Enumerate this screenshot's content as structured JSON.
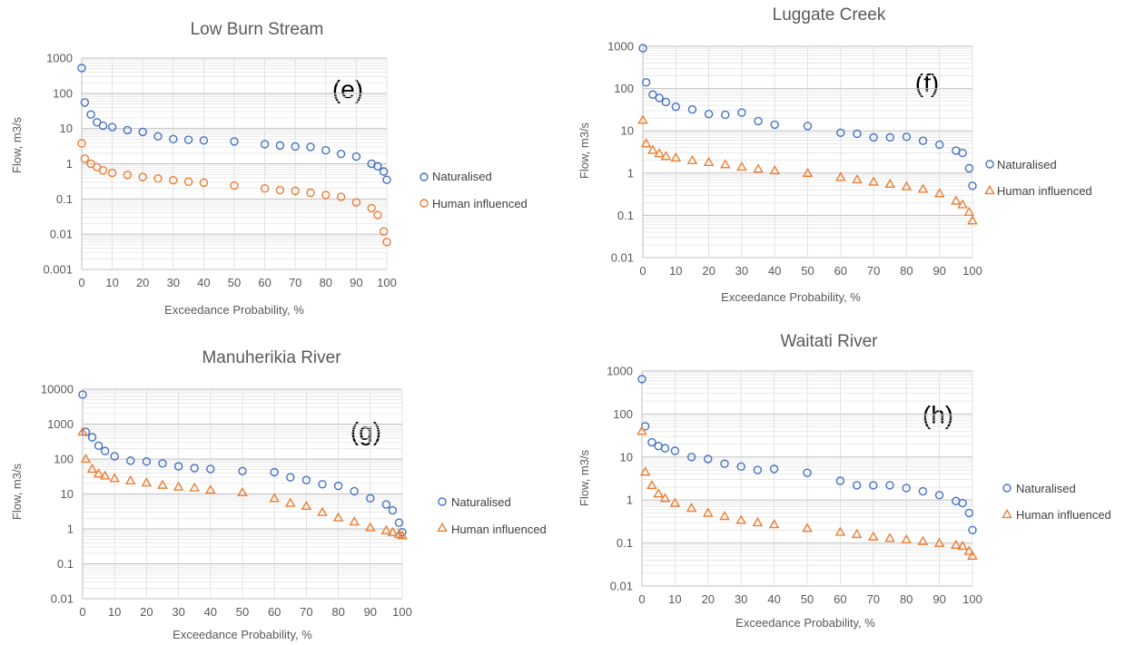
{
  "chart_data": [
    {
      "type": "scatter",
      "title": "Low Burn Stream",
      "panel_label": "(e)",
      "xlabel": "Exceedance Probability, %",
      "ylabel": "Flow, m3/s",
      "xlim": [
        0,
        100
      ],
      "x_ticks": [
        0,
        10,
        20,
        30,
        40,
        50,
        60,
        70,
        80,
        90,
        100
      ],
      "ylim": [
        0.001,
        1000
      ],
      "y_scale": "log",
      "y_ticks": [
        "0.001",
        "0.01",
        "0.1",
        "1",
        "10",
        "100",
        "1000"
      ],
      "grid": true,
      "legend": "right",
      "series": [
        {
          "name": "Naturalised",
          "marker": "circle",
          "color": "#4472C4",
          "x": [
            0,
            1,
            3,
            5,
            7,
            10,
            15,
            20,
            25,
            30,
            35,
            40,
            50,
            60,
            65,
            70,
            75,
            80,
            85,
            90,
            95,
            97,
            99,
            100
          ],
          "y": [
            520,
            55,
            25,
            15,
            12,
            11,
            9,
            8,
            6,
            5,
            4.8,
            4.6,
            4.3,
            3.6,
            3.3,
            3.1,
            3,
            2.4,
            1.9,
            1.6,
            1,
            0.85,
            0.6,
            0.35
          ]
        },
        {
          "name": "Human influenced",
          "marker": "circle",
          "color": "#ED7D31",
          "x": [
            0,
            1,
            3,
            5,
            7,
            10,
            15,
            20,
            25,
            30,
            35,
            40,
            50,
            60,
            65,
            70,
            75,
            80,
            85,
            90,
            95,
            97,
            99,
            100
          ],
          "y": [
            3.8,
            1.4,
            1,
            0.8,
            0.65,
            0.55,
            0.48,
            0.42,
            0.38,
            0.34,
            0.31,
            0.29,
            0.24,
            0.2,
            0.18,
            0.17,
            0.15,
            0.13,
            0.115,
            0.08,
            0.055,
            0.035,
            0.012,
            0.006
          ]
        }
      ]
    },
    {
      "type": "scatter",
      "title": "Luggate Creek",
      "panel_label": "(f)",
      "xlabel": "Exceedance Probability, %",
      "ylabel": "Flow, m3/s",
      "xlim": [
        0,
        100
      ],
      "x_ticks": [
        0,
        10,
        20,
        30,
        40,
        50,
        60,
        70,
        80,
        90,
        100
      ],
      "ylim": [
        0.01,
        1000
      ],
      "y_scale": "log",
      "y_ticks": [
        "0.01",
        "0.1",
        "1",
        "10",
        "100",
        "1000"
      ],
      "grid": true,
      "legend": "right",
      "series": [
        {
          "name": "Naturalised",
          "marker": "circle",
          "color": "#4472C4",
          "x": [
            0,
            1,
            3,
            5,
            7,
            10,
            15,
            20,
            25,
            30,
            35,
            40,
            50,
            60,
            65,
            70,
            75,
            80,
            85,
            90,
            95,
            97,
            99,
            100
          ],
          "y": [
            900,
            140,
            72,
            60,
            48,
            37,
            32,
            25,
            24,
            27,
            17,
            14,
            13,
            9,
            8.5,
            7,
            7,
            7.2,
            5.8,
            4.7,
            3.4,
            3,
            1.3,
            0.5
          ]
        },
        {
          "name": "Human influenced",
          "marker": "triangle",
          "color": "#ED7D31",
          "x": [
            0,
            1,
            3,
            5,
            7,
            10,
            15,
            20,
            25,
            30,
            35,
            40,
            50,
            60,
            65,
            70,
            75,
            80,
            85,
            90,
            95,
            97,
            99,
            100
          ],
          "y": [
            18,
            5,
            3.5,
            2.9,
            2.5,
            2.3,
            2,
            1.8,
            1.6,
            1.4,
            1.25,
            1.15,
            1,
            0.8,
            0.7,
            0.62,
            0.55,
            0.48,
            0.42,
            0.33,
            0.22,
            0.18,
            0.12,
            0.075
          ]
        }
      ]
    },
    {
      "type": "scatter",
      "title": "Manuherikia River",
      "panel_label": "(g)",
      "xlabel": "Exceedance Probability, %",
      "ylabel": "Flow, m3/s",
      "xlim": [
        0,
        100
      ],
      "x_ticks": [
        0,
        10,
        20,
        30,
        40,
        50,
        60,
        70,
        80,
        90,
        100
      ],
      "ylim": [
        0.01,
        10000
      ],
      "y_scale": "log",
      "y_ticks": [
        "0.01",
        "0.1",
        "1",
        "10",
        "100",
        "1000",
        "10000"
      ],
      "grid": true,
      "legend": "right",
      "series": [
        {
          "name": "Naturalised",
          "marker": "circle",
          "color": "#4472C4",
          "x": [
            0,
            1,
            3,
            5,
            7,
            10,
            15,
            20,
            25,
            30,
            35,
            40,
            50,
            60,
            65,
            70,
            75,
            80,
            85,
            90,
            95,
            97,
            99,
            100
          ],
          "y": [
            7000,
            600,
            420,
            240,
            170,
            120,
            90,
            85,
            75,
            62,
            55,
            52,
            45,
            42,
            30,
            25,
            19,
            17,
            12,
            7.5,
            5,
            3.4,
            1.5,
            0.8
          ]
        },
        {
          "name": "Human influenced",
          "marker": "triangle",
          "color": "#ED7D31",
          "x": [
            0,
            1,
            3,
            5,
            7,
            10,
            15,
            20,
            25,
            30,
            35,
            40,
            50,
            60,
            65,
            70,
            75,
            80,
            85,
            90,
            95,
            97,
            99,
            100
          ],
          "y": [
            600,
            100,
            52,
            38,
            33,
            28,
            24,
            21,
            18,
            16,
            15,
            13,
            11,
            7.5,
            5.5,
            4.5,
            3,
            2.1,
            1.6,
            1.1,
            0.9,
            0.8,
            0.7,
            0.65
          ]
        }
      ]
    },
    {
      "type": "scatter",
      "title": "Waitati River",
      "panel_label": "(h)",
      "xlabel": "Exceedance Probability, %",
      "ylabel": "Flow, m3/s",
      "xlim": [
        0,
        100
      ],
      "x_ticks": [
        0,
        10,
        20,
        30,
        40,
        50,
        60,
        70,
        80,
        90,
        100
      ],
      "ylim": [
        0.01,
        1000
      ],
      "y_scale": "log",
      "y_ticks": [
        "0.01",
        "0.1",
        "1",
        "10",
        "100",
        "1000"
      ],
      "grid": true,
      "legend": "right",
      "series": [
        {
          "name": "Naturalised",
          "marker": "circle",
          "color": "#4472C4",
          "x": [
            0,
            1,
            3,
            5,
            7,
            10,
            15,
            20,
            25,
            30,
            35,
            40,
            50,
            60,
            65,
            70,
            75,
            80,
            85,
            90,
            95,
            97,
            99,
            100
          ],
          "y": [
            650,
            52,
            22,
            18,
            16,
            14,
            10,
            9,
            7,
            6,
            5,
            5.3,
            4.3,
            2.8,
            2.2,
            2.2,
            2.2,
            1.9,
            1.6,
            1.3,
            0.95,
            0.85,
            0.5,
            0.2
          ]
        },
        {
          "name": "Human influenced",
          "marker": "triangle",
          "color": "#ED7D31",
          "x": [
            0,
            1,
            3,
            5,
            7,
            10,
            15,
            20,
            25,
            30,
            35,
            40,
            50,
            60,
            65,
            70,
            75,
            80,
            85,
            90,
            95,
            97,
            99,
            100
          ],
          "y": [
            40,
            4.5,
            2.2,
            1.4,
            1.1,
            0.85,
            0.65,
            0.5,
            0.42,
            0.34,
            0.3,
            0.27,
            0.22,
            0.18,
            0.16,
            0.14,
            0.13,
            0.12,
            0.11,
            0.1,
            0.09,
            0.085,
            0.065,
            0.05
          ]
        }
      ]
    }
  ]
}
